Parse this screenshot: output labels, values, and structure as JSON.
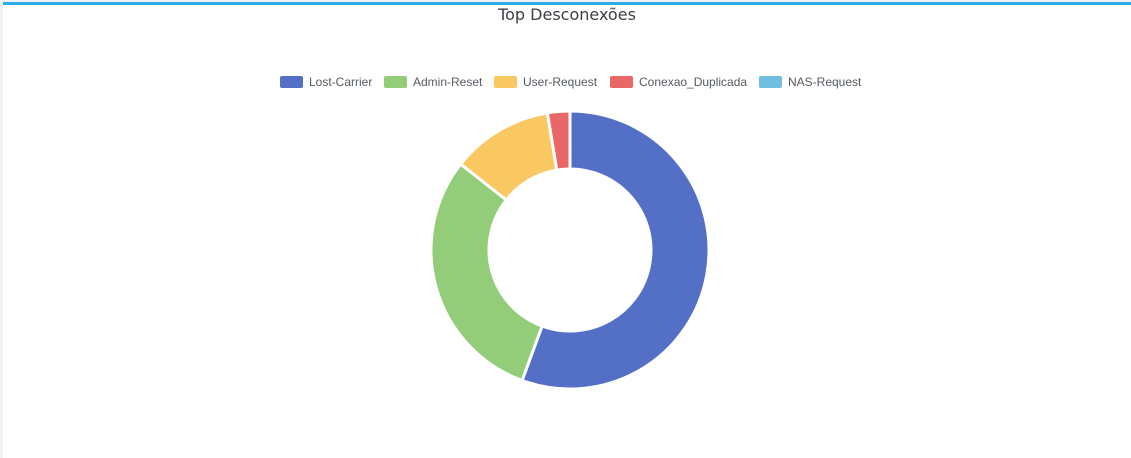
{
  "card": {
    "title": "Top Desconexões",
    "accent": "#2aace2"
  },
  "chart_data": {
    "type": "doughnut",
    "title": "Top Desconexões",
    "legend_position": "top",
    "series": [
      {
        "name": "Lost-Carrier",
        "value": 55.6,
        "color": "#5470c6"
      },
      {
        "name": "Admin-Reset",
        "value": 30.0,
        "color": "#93cd79"
      },
      {
        "name": "User-Request",
        "value": 11.8,
        "color": "#fac863"
      },
      {
        "name": "Conexao_Duplicada",
        "value": 2.6,
        "color": "#ea6767"
      },
      {
        "name": "NAS-Request",
        "value": 0,
        "color": "#70bfe0"
      }
    ]
  }
}
